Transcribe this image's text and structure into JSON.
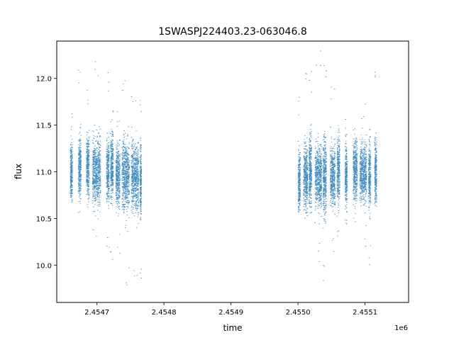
{
  "chart_data": {
    "type": "scatter",
    "title": "1SWASPJ224403.23-063046.8",
    "xlabel": "time",
    "ylabel": "flux",
    "x_offset_label": "1e6",
    "xlim": [
      2454640,
      2455165
    ],
    "ylim": [
      9.6,
      12.4
    ],
    "x_ticks": [
      2454700,
      2454800,
      2454900,
      2455000,
      2455100
    ],
    "x_tick_labels": [
      "2.4547",
      "2.4548",
      "2.4549",
      "2.4550",
      "2.4551"
    ],
    "y_ticks": [
      10.0,
      10.5,
      11.0,
      11.5,
      12.0
    ],
    "y_tick_labels": [
      "10.0",
      "10.5",
      "11.0",
      "11.5",
      "12.0"
    ],
    "grid": false,
    "marker_color": "#1f77b4",
    "clusters": [
      {
        "x_start": 2454660,
        "x_end": 2454663,
        "y_center": 11.0,
        "y_spread": 0.25,
        "y_min": 10.65,
        "y_max": 11.7
      },
      {
        "x_start": 2454672,
        "x_end": 2454676,
        "y_center": 11.05,
        "y_spread": 0.3,
        "y_min": 10.55,
        "y_max": 12.2
      },
      {
        "x_start": 2454684,
        "x_end": 2454688,
        "y_center": 11.05,
        "y_spread": 0.3,
        "y_min": 10.6,
        "y_max": 11.9
      },
      {
        "x_start": 2454693,
        "x_end": 2454705,
        "y_center": 11.0,
        "y_spread": 0.3,
        "y_min": 10.25,
        "y_max": 12.2
      },
      {
        "x_start": 2454714,
        "x_end": 2454718,
        "y_center": 11.0,
        "y_spread": 0.3,
        "y_min": 10.15,
        "y_max": 12.1
      },
      {
        "x_start": 2454720,
        "x_end": 2454724,
        "y_center": 11.05,
        "y_spread": 0.3,
        "y_min": 10.0,
        "y_max": 11.8
      },
      {
        "x_start": 2454728,
        "x_end": 2454734,
        "y_center": 10.95,
        "y_spread": 0.3,
        "y_min": 10.1,
        "y_max": 11.7
      },
      {
        "x_start": 2454737,
        "x_end": 2454748,
        "y_center": 10.95,
        "y_spread": 0.35,
        "y_min": 9.75,
        "y_max": 12.1
      },
      {
        "x_start": 2454751,
        "x_end": 2454762,
        "y_center": 10.95,
        "y_spread": 0.35,
        "y_min": 9.75,
        "y_max": 12.0
      },
      {
        "x_start": 2454764,
        "x_end": 2454766,
        "y_center": 10.9,
        "y_spread": 0.35,
        "y_min": 9.8,
        "y_max": 11.8
      },
      {
        "x_start": 2455000,
        "x_end": 2455003,
        "y_center": 10.9,
        "y_spread": 0.3,
        "y_min": 10.55,
        "y_max": 11.8
      },
      {
        "x_start": 2455008,
        "x_end": 2455014,
        "y_center": 10.95,
        "y_spread": 0.3,
        "y_min": 10.5,
        "y_max": 12.2
      },
      {
        "x_start": 2455016,
        "x_end": 2455020,
        "y_center": 11.0,
        "y_spread": 0.35,
        "y_min": 10.55,
        "y_max": 12.1
      },
      {
        "x_start": 2455025,
        "x_end": 2455035,
        "y_center": 10.95,
        "y_spread": 0.3,
        "y_min": 10.0,
        "y_max": 12.3
      },
      {
        "x_start": 2455037,
        "x_end": 2455042,
        "y_center": 10.95,
        "y_spread": 0.35,
        "y_min": 9.75,
        "y_max": 12.2
      },
      {
        "x_start": 2455048,
        "x_end": 2455055,
        "y_center": 10.95,
        "y_spread": 0.3,
        "y_min": 10.1,
        "y_max": 12.0
      },
      {
        "x_start": 2455058,
        "x_end": 2455062,
        "y_center": 11.0,
        "y_spread": 0.3,
        "y_min": 10.3,
        "y_max": 11.5
      },
      {
        "x_start": 2455070,
        "x_end": 2455073,
        "y_center": 10.95,
        "y_spread": 0.3,
        "y_min": 10.4,
        "y_max": 11.6
      },
      {
        "x_start": 2455082,
        "x_end": 2455088,
        "y_center": 11.0,
        "y_spread": 0.3,
        "y_min": 10.4,
        "y_max": 11.5
      },
      {
        "x_start": 2455092,
        "x_end": 2455102,
        "y_center": 11.0,
        "y_spread": 0.3,
        "y_min": 10.2,
        "y_max": 11.8
      },
      {
        "x_start": 2455105,
        "x_end": 2455108,
        "y_center": 10.95,
        "y_spread": 0.3,
        "y_min": 10.0,
        "y_max": 11.5
      },
      {
        "x_start": 2455114,
        "x_end": 2455117,
        "y_center": 11.0,
        "y_spread": 0.3,
        "y_min": 10.5,
        "y_max": 12.1
      }
    ]
  }
}
